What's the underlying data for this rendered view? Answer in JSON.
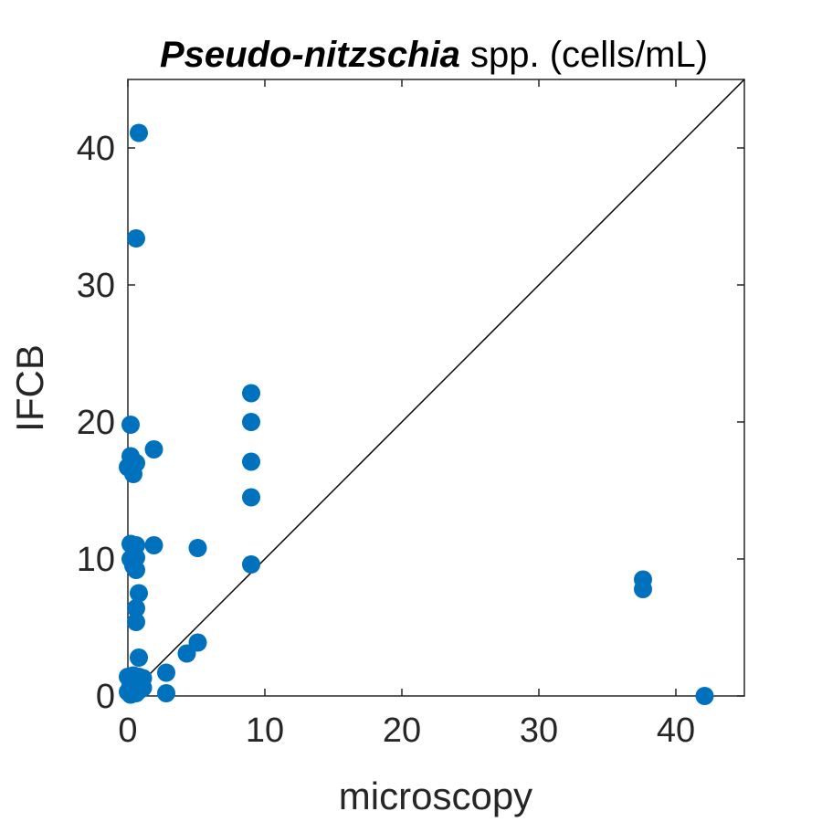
{
  "chart_data": {
    "type": "scatter",
    "title_italic": "Pseudo-nitzschia",
    "title_rest": " spp. (cells/mL)",
    "xlabel": "microscopy",
    "ylabel": "IFCB",
    "xlim": [
      0,
      45
    ],
    "ylim": [
      0,
      45
    ],
    "x_ticks": [
      0,
      10,
      20,
      30,
      40
    ],
    "y_ticks": [
      0,
      10,
      20,
      30,
      40
    ],
    "grid": false,
    "reference_line": "y = x",
    "marker_color": "#0072BD",
    "line_color": "#000000",
    "series": [
      {
        "points": [
          [
            0.8,
            41.1
          ],
          [
            0.6,
            33.4
          ],
          [
            0.2,
            19.8
          ],
          [
            0.2,
            17.5
          ],
          [
            0.6,
            17.0
          ],
          [
            0.0,
            16.7
          ],
          [
            0.4,
            16.2
          ],
          [
            1.9,
            18.0
          ],
          [
            9.0,
            22.1
          ],
          [
            9.0,
            20.0
          ],
          [
            9.0,
            17.1
          ],
          [
            9.0,
            14.5
          ],
          [
            9.0,
            9.6
          ],
          [
            0.2,
            11.1
          ],
          [
            0.6,
            11.0
          ],
          [
            1.9,
            11.0
          ],
          [
            5.1,
            10.8
          ],
          [
            0.2,
            10.0
          ],
          [
            0.6,
            10.1
          ],
          [
            0.4,
            9.5
          ],
          [
            0.6,
            9.2
          ],
          [
            0.8,
            7.5
          ],
          [
            0.6,
            6.4
          ],
          [
            0.6,
            5.4
          ],
          [
            0.8,
            2.8
          ],
          [
            4.3,
            3.1
          ],
          [
            5.1,
            3.9
          ],
          [
            2.8,
            1.7
          ],
          [
            0.0,
            1.4
          ],
          [
            0.4,
            1.5
          ],
          [
            0.8,
            1.4
          ],
          [
            1.1,
            1.3
          ],
          [
            0.6,
            1.0
          ],
          [
            0.2,
            0.8
          ],
          [
            0.4,
            0.5
          ],
          [
            0.8,
            0.4
          ],
          [
            1.1,
            0.6
          ],
          [
            0.0,
            0.3
          ],
          [
            0.2,
            0.1
          ],
          [
            0.6,
            0.2
          ],
          [
            2.8,
            0.2
          ],
          [
            42.1,
            0.0
          ],
          [
            37.6,
            8.5
          ],
          [
            37.6,
            7.8
          ]
        ]
      }
    ]
  }
}
